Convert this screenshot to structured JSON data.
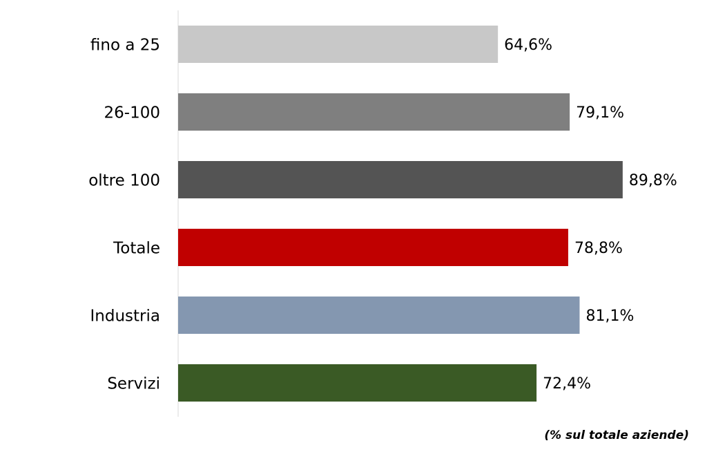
{
  "chart_data": {
    "type": "bar",
    "orientation": "horizontal",
    "categories": [
      "fino a 25",
      "26-100",
      "oltre 100",
      "Totale",
      "Industria",
      "Servizi"
    ],
    "values": [
      64.6,
      79.1,
      89.8,
      78.8,
      81.1,
      72.4
    ],
    "value_labels": [
      "64,6%",
      "79,1%",
      "89,8%",
      "78,8%",
      "81,1%",
      "72,4%"
    ],
    "colors": [
      "#c8c8c8",
      "#7f7f7f",
      "#545454",
      "#c00000",
      "#8497b0",
      "#3a5a25"
    ],
    "xlim": [
      0,
      100
    ],
    "note": "(% sul totale aziende)"
  }
}
